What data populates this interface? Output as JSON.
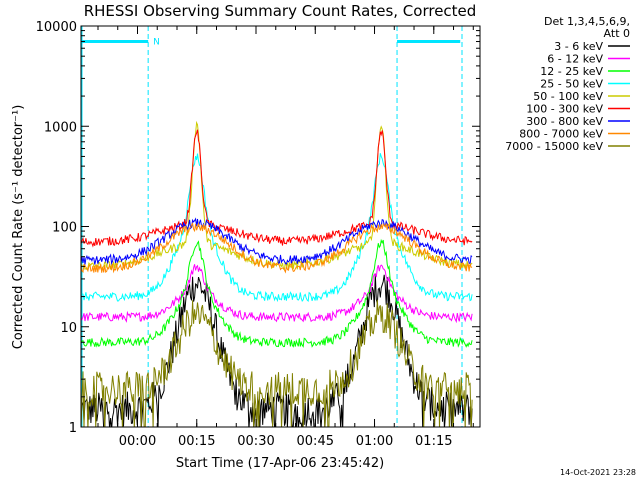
{
  "chart_data": {
    "type": "line",
    "title": "RHESSI Observing Summary Count Rates, Corrected",
    "xlabel": "Start Time (17-Apr-06 23:45:42)",
    "ylabel": "Corrected Count Rate (s⁻¹ detector⁻¹)",
    "x_unit": "minutes after start time",
    "xlim": [
      0,
      101
    ],
    "ylim": [
      1,
      10000
    ],
    "yscale": "log",
    "x_ticks": [
      {
        "value": 14.3,
        "label": "00:00"
      },
      {
        "value": 29.3,
        "label": "00:15"
      },
      {
        "value": 44.3,
        "label": "00:30"
      },
      {
        "value": 59.3,
        "label": "00:45"
      },
      {
        "value": 74.3,
        "label": "01:00"
      },
      {
        "value": 89.3,
        "label": "01:15"
      }
    ],
    "y_ticks": [
      {
        "value": 1,
        "label": "1"
      },
      {
        "value": 10,
        "label": "10"
      },
      {
        "value": 100,
        "label": "100"
      },
      {
        "value": 1000,
        "label": "1000"
      },
      {
        "value": 10000,
        "label": "10000"
      }
    ],
    "legend_header": [
      "Det 1,3,4,5,6,9,",
      "Att 0"
    ],
    "legend_position": "right",
    "footer_date": "14-Oct-2021 23:28",
    "night_label": "N",
    "night_bars": [
      {
        "start": 0,
        "end": 17,
        "label_shown": true
      },
      {
        "start": 80,
        "end": 96,
        "label_shown": false
      }
    ],
    "boundary_lines": [
      17,
      80
    ],
    "peaks": [
      29.3,
      76.0
    ],
    "series": [
      {
        "name": "3 - 6 keV",
        "color": "#000000",
        "base": 1.5,
        "peak": 27,
        "kind": "low"
      },
      {
        "name": "6 - 12 keV",
        "color": "#ff00ff",
        "base": 12.5,
        "peak": 40,
        "kind": "mid"
      },
      {
        "name": "12 - 25 keV",
        "color": "#00ff00",
        "base": 7,
        "peak": 70,
        "kind": "mid"
      },
      {
        "name": "25 - 50 keV",
        "color": "#00ffff",
        "base": 20,
        "peak": 500,
        "kind": "mid"
      },
      {
        "name": "50 - 100 keV",
        "color": "#cccc00",
        "base": 40,
        "peak": 1050,
        "kind": "wide"
      },
      {
        "name": "100 - 300 keV",
        "color": "#ff0000",
        "base": 70,
        "peak": 900,
        "kind": "wide"
      },
      {
        "name": "300 - 800 keV",
        "color": "#0000ff",
        "base": 46,
        "peak": 108,
        "kind": "wide"
      },
      {
        "name": "800 - 7000 keV",
        "color": "#ff8800",
        "base": 38,
        "peak": 98,
        "kind": "wide"
      },
      {
        "name": "7000 - 15000 keV",
        "color": "#808000",
        "base": 2.4,
        "peak": 13,
        "kind": "low"
      }
    ]
  }
}
